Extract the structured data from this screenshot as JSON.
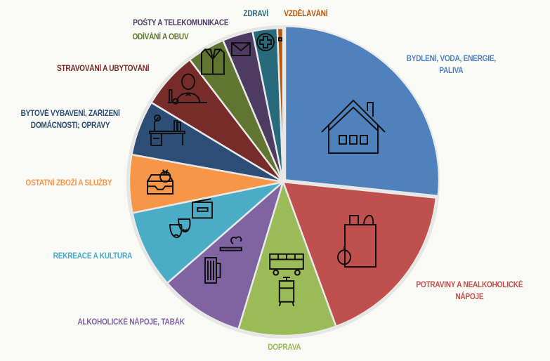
{
  "chart_data": {
    "type": "pie",
    "title": "",
    "start_angle_deg": 0,
    "direction": "clockwise",
    "slices": [
      {
        "label": "BYDLENÍ, VODA, ENERGIE, PALIVA",
        "label_lines": [
          "BYDLENÍ, VODA, ENERGIE,",
          "PALIVA"
        ],
        "value": 26.7,
        "color": "#4f81bd",
        "icon": "house-icon"
      },
      {
        "label": "POTRAVINY A NEALKOHOLICKÉ NÁPOJE",
        "label_lines": [
          "POTRAVINY A NEALKOHOLICKÉ",
          "NÁPOJE"
        ],
        "value": 17.8,
        "color": "#c0504d",
        "icon": "grocery-bag-icon"
      },
      {
        "label": "DOPRAVA",
        "label_lines": [
          "DOPRAVA"
        ],
        "value": 10.3,
        "color": "#9bbb59",
        "icon": "bus-tram-icon"
      },
      {
        "label": "ALKOHOLICKÉ NÁPOJE, TABÁK",
        "label_lines": [
          "ALKOHOLICKÉ NÁPOJE, TABÁK"
        ],
        "value": 8.9,
        "color": "#8064a2",
        "icon": "beer-cigarette-icon"
      },
      {
        "label": "REKREACE A KULTURA",
        "label_lines": [
          "REKREACE A KULTURA"
        ],
        "value": 8.2,
        "color": "#4bacc6",
        "icon": "theater-masks-icon"
      },
      {
        "label": "OSTATNÍ ZBOŽÍ A SLUŽBY",
        "label_lines": [
          "OSTATNÍ ZBOŽÍ A SLUŽBY"
        ],
        "value": 6.1,
        "color": "#f79646",
        "icon": "inbox-icon"
      },
      {
        "label": "BYTOVÉ VYBAVENÍ, ZAŘÍZENÍ DOMÁCNOSTI; OPRAVY",
        "label_lines": [
          "BYTOVÉ VYBAVENÍ, ZAŘÍZENÍ",
          "DOMÁCNOSTI; OPRAVY"
        ],
        "value": 5.8,
        "color": "#2c4d75",
        "icon": "desk-icon"
      },
      {
        "label": "STRAVOVÁNÍ A UBYTOVÁNÍ",
        "label_lines": [
          "STRAVOVÁNÍ A UBYTOVÁNÍ"
        ],
        "value": 6.0,
        "color": "#772c2a",
        "icon": "waiter-icon"
      },
      {
        "label": "ODÍVÁNÍ A OBUV",
        "label_lines": [
          "ODÍVÁNÍ A OBUV"
        ],
        "value": 4.0,
        "color": "#5f7530",
        "icon": "jacket-icon"
      },
      {
        "label": "POŠTY A TELEKOMUNIKACE",
        "label_lines": [
          "POŠTY A TELEKOMUNIKACE"
        ],
        "value": 3.2,
        "color": "#4d3b62",
        "icon": "envelope-icon"
      },
      {
        "label": "ZDRAVÍ",
        "label_lines": [
          "ZDRAVÍ"
        ],
        "value": 2.6,
        "color": "#276a7c",
        "icon": "health-cross-icon"
      },
      {
        "label": "VZDĚLÁVÁNÍ",
        "label_lines": [
          "VZDĚLÁVÁNÍ"
        ],
        "value": 0.6,
        "color": "#b65708",
        "icon": "education-icon"
      }
    ]
  }
}
